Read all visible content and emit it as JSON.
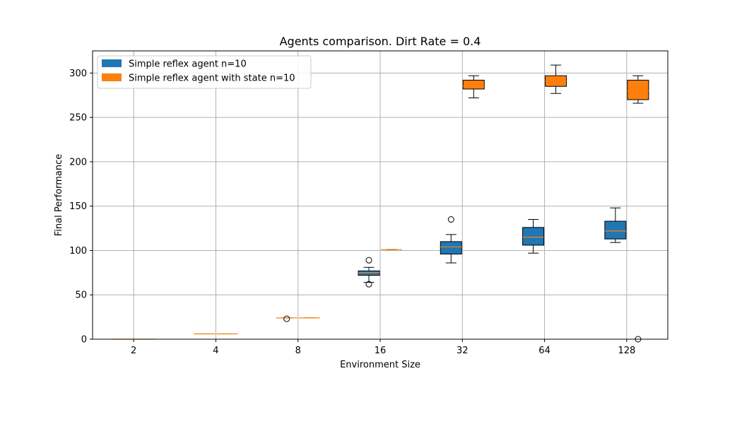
{
  "chart_data": {
    "type": "box",
    "title": "Agents comparison. Dirt Rate = 0.4",
    "xlabel": "Environment Size",
    "ylabel": "Final Performance",
    "categories": [
      "2",
      "4",
      "8",
      "16",
      "32",
      "64",
      "128"
    ],
    "ylim": [
      0,
      325
    ],
    "yticks": [
      0,
      50,
      100,
      150,
      200,
      250,
      300
    ],
    "grid": true,
    "legend_position": "top-left",
    "series": [
      {
        "name": "Simple reflex agent n=10",
        "color": "#1f77b4",
        "median_color": "#ff7f0e",
        "boxes": [
          {
            "whislo": 0,
            "q1": 0,
            "med": 0,
            "q3": 0,
            "whishi": 0,
            "fliers": []
          },
          {
            "whislo": 6,
            "q1": 6,
            "med": 6,
            "q3": 6,
            "whishi": 6,
            "fliers": []
          },
          {
            "whislo": 24,
            "q1": 24,
            "med": 24,
            "q3": 24,
            "whishi": 24,
            "fliers": [
              23
            ]
          },
          {
            "whislo": 64,
            "q1": 72,
            "med": 75,
            "q3": 77,
            "whishi": 81,
            "fliers": [
              89,
              62
            ]
          },
          {
            "whislo": 86,
            "q1": 96,
            "med": 104,
            "q3": 110,
            "whishi": 118,
            "fliers": [
              135
            ]
          },
          {
            "whislo": 97,
            "q1": 106,
            "med": 115,
            "q3": 126,
            "whishi": 135,
            "fliers": []
          },
          {
            "whislo": 109,
            "q1": 113,
            "med": 122,
            "q3": 133,
            "whishi": 148,
            "fliers": []
          }
        ]
      },
      {
        "name": "Simple reflex agent with state n=10",
        "color": "#ff7f0e",
        "median_color": "#ff7f0e",
        "boxes": [
          {
            "whislo": 0,
            "q1": 0,
            "med": 0,
            "q3": 0,
            "whishi": 0,
            "fliers": []
          },
          {
            "whislo": 6,
            "q1": 6,
            "med": 6,
            "q3": 6,
            "whishi": 6,
            "fliers": []
          },
          {
            "whislo": 24,
            "q1": 24,
            "med": 24,
            "q3": 24,
            "whishi": 24,
            "fliers": []
          },
          {
            "whislo": 101,
            "q1": 101,
            "med": 101,
            "q3": 101,
            "whishi": 101,
            "fliers": []
          },
          {
            "whislo": 272,
            "q1": 282,
            "med": 285,
            "q3": 292,
            "whishi": 297,
            "fliers": []
          },
          {
            "whislo": 277,
            "q1": 285,
            "med": 291,
            "q3": 297,
            "whishi": 309,
            "fliers": []
          },
          {
            "whislo": 266,
            "q1": 270,
            "med": 280,
            "q3": 292,
            "whishi": 297,
            "fliers": [
              0
            ]
          }
        ]
      }
    ]
  }
}
